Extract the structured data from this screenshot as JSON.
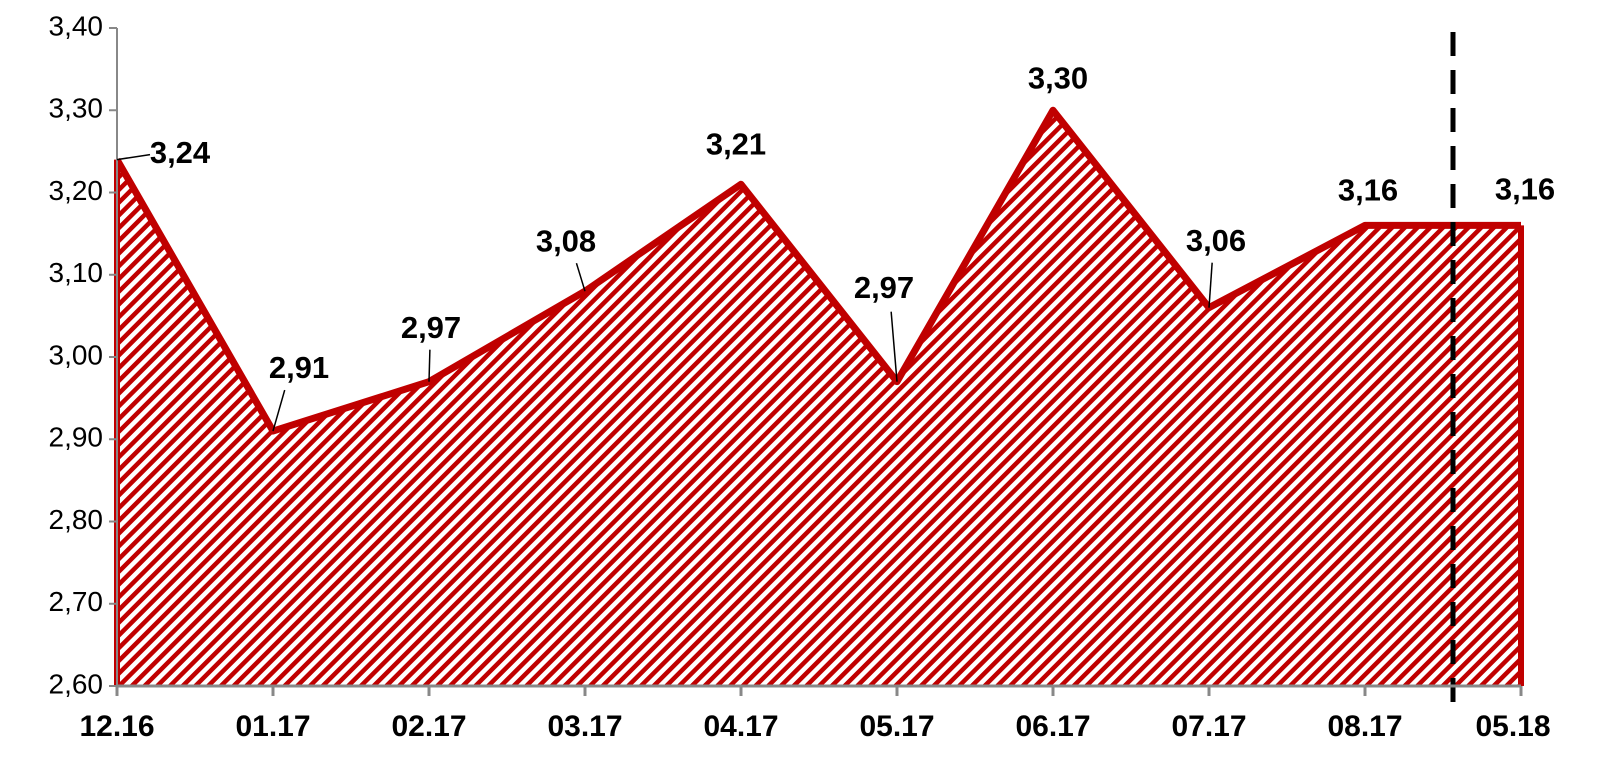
{
  "chart_data": {
    "type": "area",
    "categories": [
      "12.16",
      "01.17",
      "02.17",
      "03.17",
      "04.17",
      "05.17",
      "06.17",
      "07.17",
      "08.17",
      "05.18"
    ],
    "values": [
      3.24,
      2.91,
      2.97,
      3.08,
      3.21,
      2.97,
      3.3,
      3.06,
      3.16,
      3.16
    ],
    "value_labels": [
      "3,24",
      "2,91",
      "2,97",
      "3,08",
      "3,21",
      "2,97",
      "3,30",
      "3,06",
      "3,16",
      "3,16"
    ],
    "color": "#c00000",
    "ylim": [
      2.6,
      3.4
    ],
    "yticks": [
      {
        "value": 2.6,
        "label": "2,60"
      },
      {
        "value": 2.7,
        "label": "2,70"
      },
      {
        "value": 2.8,
        "label": "2,80"
      },
      {
        "value": 2.9,
        "label": "2,90"
      },
      {
        "value": 3.0,
        "label": "3,00"
      },
      {
        "value": 3.1,
        "label": "3,10"
      },
      {
        "value": 3.2,
        "label": "3,20"
      },
      {
        "value": 3.3,
        "label": "3,30"
      },
      {
        "value": 3.4,
        "label": "3,40"
      }
    ]
  }
}
